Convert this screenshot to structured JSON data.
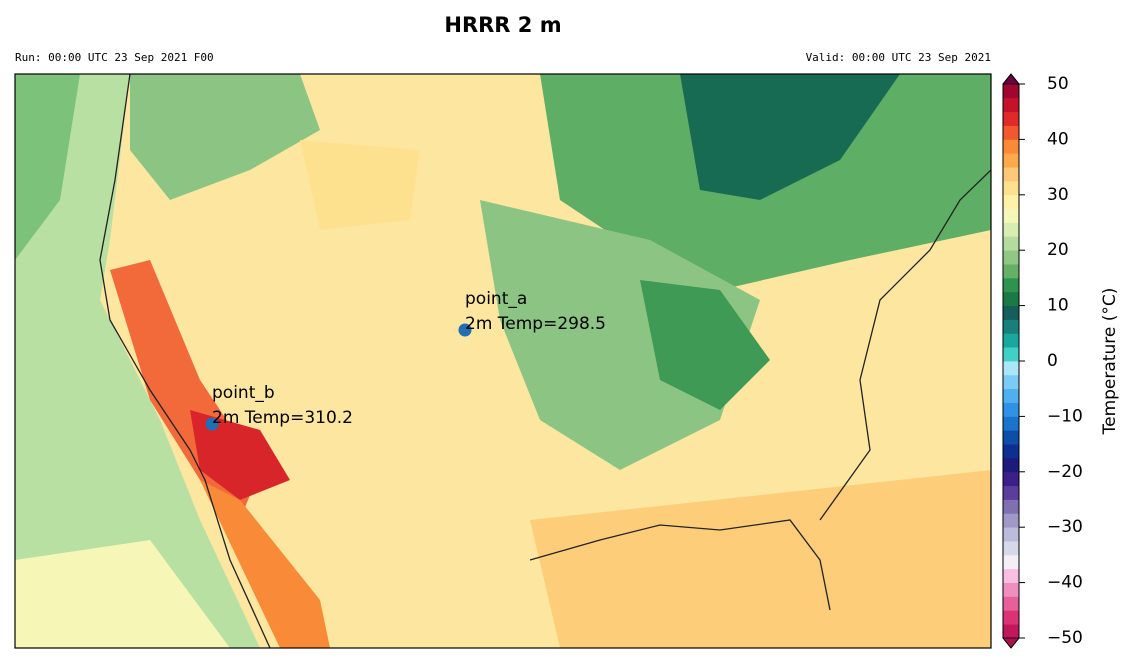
{
  "header": {
    "title": "HRRR 2 m",
    "run": "Run: 00:00 UTC 23 Sep 2021 F00",
    "valid": "Valid: 00:00 UTC 23 Sep 2021"
  },
  "points": [
    {
      "name": "point_a",
      "label": "2m Temp=298.5"
    },
    {
      "name": "point_b",
      "label": "2m Temp=310.2"
    }
  ],
  "colorbar": {
    "label": "Temperature (°C)",
    "lim": [
      -50,
      50
    ],
    "ticks": [
      {
        "value": -50,
        "label": "−50"
      },
      {
        "value": -40,
        "label": "−40"
      },
      {
        "value": -30,
        "label": "−30"
      },
      {
        "value": -20,
        "label": "−20"
      },
      {
        "value": -10,
        "label": "−10"
      },
      0,
      10,
      20,
      30,
      40,
      50
    ],
    "colors": [
      "#c2185b",
      "#da3374",
      "#e8609a",
      "#f08ec0",
      "#f8bfe0",
      "#f4eef6",
      "#d7d7ea",
      "#bdbbdb",
      "#9f99c8",
      "#8070b3",
      "#5c3d9c",
      "#3b1f8a",
      "#1e1a7c",
      "#0d2f90",
      "#0c4ea8",
      "#1a74cc",
      "#2e93e6",
      "#4fb0f0",
      "#7ccaf6",
      "#a8e6f8",
      "#40d0c8",
      "#1aa89e",
      "#17807a",
      "#155e5a",
      "#1a7a45",
      "#2f9350",
      "#66b066",
      "#90c785",
      "#b5dba0",
      "#d8eeb0",
      "#f4f7b8",
      "#fff1a8",
      "#fee08e",
      "#fdc978",
      "#fca94c",
      "#f98a38",
      "#f2582e",
      "#e02a2a",
      "#c4122a",
      "#a0072e"
    ],
    "over_color": "#6a0040",
    "under_color": "#a8124a"
  }
}
